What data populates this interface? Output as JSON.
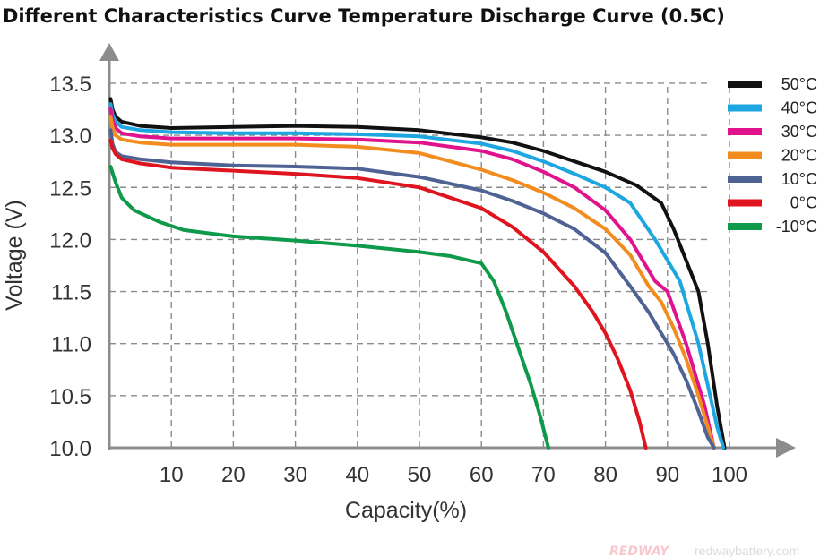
{
  "chart_data": {
    "type": "line",
    "title": "Different Characteristics Curve Temperature Discharge Curve (0.5C)",
    "xlabel": "Capacity(%)",
    "ylabel": "Voltage (V)",
    "xlim": [
      0,
      103
    ],
    "ylim": [
      10.0,
      13.5
    ],
    "x_ticks": [
      10,
      20,
      30,
      40,
      50,
      60,
      70,
      80,
      90,
      100
    ],
    "x_tick_labels": [
      "10",
      "20",
      "30",
      "40",
      "50",
      "60",
      "70",
      "80",
      "90",
      "100"
    ],
    "y_ticks": [
      10.0,
      10.5,
      11.0,
      11.5,
      12.0,
      12.5,
      13.0,
      13.5
    ],
    "y_tick_labels": [
      "10.0",
      "10.5",
      "11.0",
      "11.5",
      "12.0",
      "12.5",
      "13.0",
      "13.5"
    ],
    "grid": true,
    "legend_position": "top-right",
    "series": [
      {
        "name": "50°C",
        "color": "#111111",
        "points": [
          [
            0.2,
            13.35
          ],
          [
            0.5,
            13.25
          ],
          [
            1,
            13.18
          ],
          [
            2,
            13.13
          ],
          [
            5,
            13.09
          ],
          [
            10,
            13.07
          ],
          [
            20,
            13.08
          ],
          [
            30,
            13.09
          ],
          [
            40,
            13.08
          ],
          [
            50,
            13.05
          ],
          [
            60,
            12.98
          ],
          [
            65,
            12.93
          ],
          [
            70,
            12.85
          ],
          [
            75,
            12.75
          ],
          [
            80,
            12.65
          ],
          [
            85,
            12.52
          ],
          [
            89,
            12.35
          ],
          [
            91,
            12.1
          ],
          [
            93,
            11.8
          ],
          [
            95,
            11.5
          ],
          [
            96.5,
            11.0
          ],
          [
            98,
            10.4
          ],
          [
            99.2,
            10.0
          ]
        ]
      },
      {
        "name": "40°C",
        "color": "#1ea6e0",
        "points": [
          [
            0.2,
            13.3
          ],
          [
            0.5,
            13.2
          ],
          [
            1,
            13.13
          ],
          [
            2,
            13.08
          ],
          [
            5,
            13.05
          ],
          [
            10,
            13.03
          ],
          [
            20,
            13.02
          ],
          [
            30,
            13.02
          ],
          [
            40,
            13.01
          ],
          [
            50,
            12.99
          ],
          [
            60,
            12.92
          ],
          [
            65,
            12.85
          ],
          [
            70,
            12.75
          ],
          [
            75,
            12.63
          ],
          [
            80,
            12.5
          ],
          [
            84,
            12.35
          ],
          [
            88,
            12.0
          ],
          [
            90,
            11.8
          ],
          [
            92,
            11.6
          ],
          [
            93.5,
            11.3
          ],
          [
            95,
            11.0
          ],
          [
            96.5,
            10.6
          ],
          [
            98,
            10.2
          ],
          [
            99,
            10.0
          ]
        ]
      },
      {
        "name": "30°C",
        "color": "#e0128c",
        "points": [
          [
            0.2,
            13.25
          ],
          [
            0.5,
            13.15
          ],
          [
            1,
            13.07
          ],
          [
            2,
            13.02
          ],
          [
            5,
            12.99
          ],
          [
            10,
            12.97
          ],
          [
            20,
            12.97
          ],
          [
            30,
            12.97
          ],
          [
            40,
            12.96
          ],
          [
            50,
            12.93
          ],
          [
            60,
            12.85
          ],
          [
            65,
            12.77
          ],
          [
            70,
            12.65
          ],
          [
            75,
            12.5
          ],
          [
            80,
            12.28
          ],
          [
            84,
            12.0
          ],
          [
            86,
            11.8
          ],
          [
            88,
            11.6
          ],
          [
            90,
            11.5
          ],
          [
            91.5,
            11.25
          ],
          [
            93,
            11.0
          ],
          [
            94.5,
            10.7
          ],
          [
            96,
            10.4
          ],
          [
            97.5,
            10.0
          ]
        ]
      },
      {
        "name": "20°C",
        "color": "#f28c1e",
        "points": [
          [
            0.2,
            13.18
          ],
          [
            0.5,
            13.08
          ],
          [
            1,
            13.0
          ],
          [
            2,
            12.96
          ],
          [
            5,
            12.93
          ],
          [
            10,
            12.91
          ],
          [
            20,
            12.91
          ],
          [
            30,
            12.91
          ],
          [
            40,
            12.89
          ],
          [
            50,
            12.83
          ],
          [
            60,
            12.67
          ],
          [
            65,
            12.57
          ],
          [
            70,
            12.45
          ],
          [
            75,
            12.3
          ],
          [
            80,
            12.1
          ],
          [
            84,
            11.85
          ],
          [
            86,
            11.65
          ],
          [
            87,
            11.55
          ],
          [
            89,
            11.4
          ],
          [
            91,
            11.15
          ],
          [
            93,
            10.85
          ],
          [
            95,
            10.5
          ],
          [
            96.5,
            10.2
          ],
          [
            97.5,
            10.0
          ]
        ]
      },
      {
        "name": "10°C",
        "color": "#4f6294",
        "points": [
          [
            0.2,
            13.05
          ],
          [
            0.5,
            12.92
          ],
          [
            1,
            12.84
          ],
          [
            2,
            12.8
          ],
          [
            5,
            12.77
          ],
          [
            10,
            12.74
          ],
          [
            20,
            12.71
          ],
          [
            30,
            12.7
          ],
          [
            40,
            12.68
          ],
          [
            50,
            12.6
          ],
          [
            60,
            12.47
          ],
          [
            65,
            12.37
          ],
          [
            70,
            12.25
          ],
          [
            75,
            12.1
          ],
          [
            80,
            11.87
          ],
          [
            84,
            11.55
          ],
          [
            87,
            11.3
          ],
          [
            89,
            11.1
          ],
          [
            91,
            10.9
          ],
          [
            93,
            10.65
          ],
          [
            95,
            10.35
          ],
          [
            96.5,
            10.1
          ],
          [
            97.5,
            10.0
          ]
        ]
      },
      {
        "name": "0°C",
        "color": "#e0141e",
        "points": [
          [
            0.2,
            12.95
          ],
          [
            0.5,
            12.88
          ],
          [
            1,
            12.82
          ],
          [
            2,
            12.77
          ],
          [
            5,
            12.73
          ],
          [
            10,
            12.69
          ],
          [
            20,
            12.66
          ],
          [
            30,
            12.63
          ],
          [
            40,
            12.59
          ],
          [
            50,
            12.5
          ],
          [
            60,
            12.3
          ],
          [
            65,
            12.12
          ],
          [
            70,
            11.88
          ],
          [
            75,
            11.55
          ],
          [
            78,
            11.3
          ],
          [
            80,
            11.1
          ],
          [
            82,
            10.85
          ],
          [
            84,
            10.55
          ],
          [
            85.5,
            10.25
          ],
          [
            86.5,
            10.0
          ]
        ]
      },
      {
        "name": "-10°C",
        "color": "#0f9a4b",
        "points": [
          [
            0.2,
            12.7
          ],
          [
            1,
            12.55
          ],
          [
            2,
            12.4
          ],
          [
            4,
            12.28
          ],
          [
            8,
            12.17
          ],
          [
            12,
            12.09
          ],
          [
            20,
            12.03
          ],
          [
            30,
            11.99
          ],
          [
            40,
            11.94
          ],
          [
            50,
            11.88
          ],
          [
            55,
            11.84
          ],
          [
            60,
            11.77
          ],
          [
            62,
            11.6
          ],
          [
            64,
            11.3
          ],
          [
            66,
            10.95
          ],
          [
            68,
            10.6
          ],
          [
            69.5,
            10.3
          ],
          [
            70.8,
            10.0
          ]
        ]
      }
    ]
  },
  "watermark": {
    "brand": "REDWAY",
    "url": "redwaybattery.com"
  }
}
